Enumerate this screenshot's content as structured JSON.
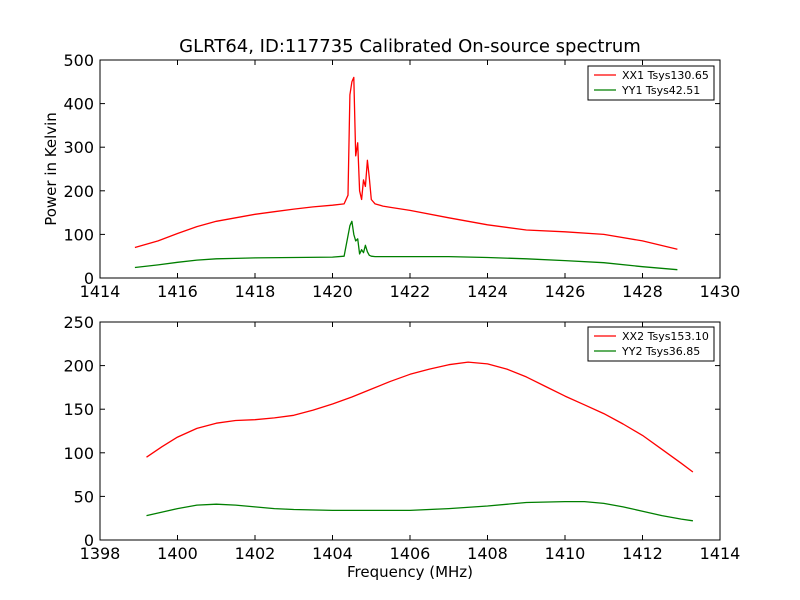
{
  "figure": {
    "title": "GLRT64, ID:117735 Calibrated On-source spectrum"
  },
  "chart_data": [
    {
      "type": "line",
      "title": "GLRT64, ID:117735 Calibrated On-source spectrum",
      "xlabel": "",
      "ylabel": "Power in Kelvin",
      "xlim": [
        1414,
        1430
      ],
      "ylim": [
        0,
        500
      ],
      "xticks": [
        1414,
        1416,
        1418,
        1420,
        1422,
        1424,
        1426,
        1428,
        1430
      ],
      "yticks": [
        0,
        100,
        200,
        300,
        400,
        500
      ],
      "grid": false,
      "legend": "top-right",
      "series": [
        {
          "name": "XX1 Tsys130.65",
          "color": "#ff0000",
          "x": [
            1414.9,
            1415.5,
            1416.0,
            1416.5,
            1417.0,
            1417.5,
            1418.0,
            1418.5,
            1419.0,
            1419.5,
            1420.0,
            1420.3,
            1420.4,
            1420.45,
            1420.5,
            1420.55,
            1420.6,
            1420.65,
            1420.7,
            1420.75,
            1420.8,
            1420.85,
            1420.9,
            1420.95,
            1421.0,
            1421.1,
            1421.3,
            1421.5,
            1422.0,
            1423.0,
            1424.0,
            1425.0,
            1426.0,
            1427.0,
            1428.0,
            1428.9
          ],
          "y": [
            70,
            85,
            102,
            118,
            130,
            138,
            146,
            152,
            158,
            163,
            167,
            170,
            190,
            420,
            450,
            460,
            280,
            310,
            200,
            180,
            225,
            210,
            270,
            230,
            180,
            170,
            165,
            162,
            155,
            138,
            122,
            110,
            106,
            100,
            85,
            66
          ]
        },
        {
          "name": "YY1 Tsys42.51",
          "color": "#007f00",
          "x": [
            1414.9,
            1415.5,
            1416.0,
            1416.5,
            1417.0,
            1417.5,
            1418.0,
            1419.0,
            1420.0,
            1420.3,
            1420.45,
            1420.5,
            1420.55,
            1420.6,
            1420.65,
            1420.7,
            1420.75,
            1420.8,
            1420.85,
            1420.9,
            1420.95,
            1421.0,
            1421.1,
            1422.0,
            1423.0,
            1424.0,
            1425.0,
            1426.0,
            1427.0,
            1428.0,
            1428.9
          ],
          "y": [
            24,
            30,
            36,
            41,
            44,
            45,
            46,
            47,
            48,
            50,
            120,
            130,
            100,
            85,
            90,
            55,
            65,
            58,
            75,
            60,
            52,
            50,
            49,
            49,
            49,
            47,
            44,
            40,
            35,
            26,
            19
          ]
        }
      ]
    },
    {
      "type": "line",
      "title": "",
      "xlabel": "Frequency (MHz)",
      "ylabel": "",
      "xlim": [
        1398,
        1414
      ],
      "ylim": [
        0,
        250
      ],
      "xticks": [
        1398,
        1400,
        1402,
        1404,
        1406,
        1408,
        1410,
        1412,
        1414
      ],
      "yticks": [
        0,
        50,
        100,
        150,
        200,
        250
      ],
      "grid": false,
      "legend": "top-right",
      "series": [
        {
          "name": "XX2 Tsys153.10",
          "color": "#ff0000",
          "x": [
            1399.2,
            1399.6,
            1400.0,
            1400.5,
            1401.0,
            1401.5,
            1402.0,
            1402.5,
            1403.0,
            1403.5,
            1404.0,
            1404.5,
            1405.0,
            1405.5,
            1406.0,
            1406.5,
            1407.0,
            1407.5,
            1408.0,
            1408.5,
            1409.0,
            1409.5,
            1410.0,
            1410.5,
            1411.0,
            1411.5,
            1412.0,
            1412.5,
            1413.0,
            1413.3
          ],
          "y": [
            95,
            107,
            118,
            128,
            134,
            137,
            138,
            140,
            143,
            149,
            156,
            164,
            173,
            182,
            190,
            196,
            201,
            204,
            202,
            196,
            187,
            176,
            165,
            155,
            145,
            133,
            120,
            104,
            88,
            78
          ]
        },
        {
          "name": "YY2 Tsys36.85",
          "color": "#007f00",
          "x": [
            1399.2,
            1399.6,
            1400.0,
            1400.5,
            1401.0,
            1401.5,
            1402.0,
            1402.5,
            1403.0,
            1404.0,
            1405.0,
            1406.0,
            1407.0,
            1408.0,
            1409.0,
            1410.0,
            1410.5,
            1411.0,
            1411.5,
            1412.0,
            1412.5,
            1413.0,
            1413.3
          ],
          "y": [
            28,
            32,
            36,
            40,
            41,
            40,
            38,
            36,
            35,
            34,
            34,
            34,
            36,
            39,
            43,
            44,
            44,
            42,
            38,
            33,
            28,
            24,
            22
          ]
        }
      ]
    }
  ]
}
